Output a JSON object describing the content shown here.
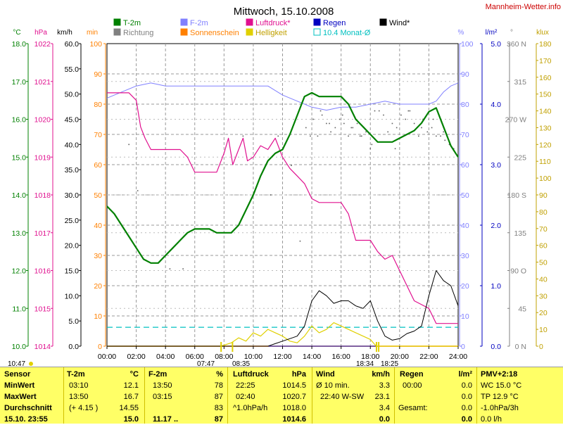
{
  "header": {
    "title": "Mittwoch, 15.10.2008",
    "brand": "Mannheim-Wetter.info"
  },
  "units": {
    "celsius": "°C",
    "hpa": "hPa",
    "kmh": "km/h",
    "min": "min",
    "percent": "%",
    "lm2": "l/m²",
    "deg": "°",
    "klux": "klux"
  },
  "legend": [
    {
      "label": "T-2m",
      "color": "#008000"
    },
    {
      "label": "Richtung",
      "color": "#808080"
    },
    {
      "label": "F-2m",
      "color": "#8080ff"
    },
    {
      "label": "Sonnenschein",
      "color": "#ff8000"
    },
    {
      "label": "Luftdruck*",
      "color": "#e0108f"
    },
    {
      "label": "Helligkeit",
      "color": "#e0d000"
    },
    {
      "label": "Regen",
      "color": "#0000c0"
    },
    {
      "label": "10.4 Monat-Ø",
      "color": "#00c0c0"
    },
    {
      "label": "Wind*",
      "color": "#000000"
    }
  ],
  "axes": {
    "temp": {
      "ticks": [
        "18.0",
        "17.0",
        "16.0",
        "15.0",
        "14.0",
        "13.0",
        "12.0",
        "11.0",
        "10.0"
      ],
      "color": "#008000"
    },
    "press": {
      "ticks": [
        "1022",
        "1021",
        "1020",
        "1019",
        "1018",
        "1017",
        "1016",
        "1015",
        "1014"
      ],
      "color": "#e0108f"
    },
    "wind": {
      "ticks": [
        "60.0",
        "55.0",
        "50.0",
        "45.0",
        "40.0",
        "35.0",
        "30.0",
        "25.0",
        "20.0",
        "15.0",
        "10.0",
        "5.0",
        "0.0"
      ],
      "color": "#000000"
    },
    "minutes": {
      "ticks": [
        "100",
        "90",
        "80",
        "70",
        "60",
        "50",
        "40",
        "30",
        "20",
        "10",
        "0"
      ],
      "color": "#ff8000"
    },
    "humidity": {
      "ticks": [
        "100",
        "90",
        "80",
        "70",
        "60",
        "50",
        "40",
        "30",
        "20",
        "10",
        "0"
      ],
      "color": "#8080ff"
    },
    "rain": {
      "ticks": [
        "5.0",
        "4.0",
        "3.0",
        "2.0",
        "1.0",
        "0.0"
      ],
      "color": "#0000c0"
    },
    "direction": {
      "ticks": [
        "360 N",
        "315",
        "270 W",
        "225",
        "180 S",
        "135",
        "90 O",
        "45",
        "0 N"
      ],
      "color": "#808080"
    },
    "lux": {
      "ticks": [
        "180",
        "170",
        "160",
        "150",
        "140",
        "130",
        "120",
        "110",
        "100",
        "90",
        "80",
        "70",
        "60",
        "50",
        "40",
        "30",
        "20",
        "10",
        "0"
      ],
      "color": "#c0a000"
    }
  },
  "time_labels": [
    "00:00",
    "02:00",
    "04:00",
    "06:00",
    "08:00",
    "10:00",
    "12:00",
    "14:00",
    "16:00",
    "18:00",
    "20:00",
    "22:00",
    "24:00"
  ],
  "sun_marks": {
    "sunrise_left": "10:47",
    "sunrise_1": "07:47",
    "sunrise_2": "08:35",
    "sunset_1": "18:34",
    "sunset_2": "18:25"
  },
  "chart_data": {
    "type": "line",
    "title": "Mittwoch, 15.10.2008",
    "xlabel": "",
    "ylabel": "",
    "xlim": [
      0,
      24
    ],
    "grid": true,
    "legend_position": "top",
    "series": [
      {
        "name": "T-2m",
        "unit": "°C",
        "ylim": [
          10,
          18
        ],
        "x": [
          0,
          0.5,
          1,
          1.5,
          2,
          2.5,
          3,
          3.5,
          4,
          4.5,
          5,
          5.5,
          6,
          6.5,
          7,
          7.5,
          8,
          8.5,
          9,
          9.5,
          10,
          10.5,
          11,
          11.5,
          12,
          12.5,
          13,
          13.5,
          14,
          14.5,
          15,
          15.5,
          16,
          16.5,
          17,
          17.5,
          18,
          18.5,
          19,
          19.5,
          20,
          20.5,
          21,
          21.5,
          22,
          22.5,
          23,
          23.5,
          24
        ],
        "y": [
          13.7,
          13.5,
          13.2,
          12.9,
          12.6,
          12.3,
          12.2,
          12.2,
          12.4,
          12.6,
          12.8,
          13.0,
          13.1,
          13.1,
          13.1,
          13.0,
          13.0,
          13.0,
          13.2,
          13.6,
          14.0,
          14.5,
          14.9,
          15.1,
          15.2,
          15.6,
          16.1,
          16.6,
          16.7,
          16.6,
          16.6,
          16.6,
          16.6,
          16.4,
          16.0,
          15.8,
          15.6,
          15.4,
          15.4,
          15.4,
          15.5,
          15.6,
          15.7,
          15.9,
          16.2,
          16.3,
          15.8,
          15.3,
          15.0
        ]
      },
      {
        "name": "F-2m",
        "unit": "%",
        "ylim": [
          0,
          100
        ],
        "x": [
          0,
          1,
          2,
          3,
          4,
          5,
          6,
          7,
          8,
          9,
          10,
          11,
          12,
          13,
          14,
          15,
          16,
          17,
          18,
          19,
          20,
          21,
          22,
          22.5,
          23,
          23.5,
          24
        ],
        "y": [
          82,
          84,
          86,
          87,
          86,
          86,
          86,
          86,
          86,
          86,
          86,
          86,
          83,
          81,
          79,
          78,
          79,
          79,
          80,
          81,
          80,
          80,
          80,
          81,
          84,
          86,
          87
        ]
      },
      {
        "name": "Luftdruck*",
        "unit": "hPa",
        "ylim": [
          1014,
          1022
        ],
        "x": [
          0,
          1,
          1.5,
          2,
          2.3,
          2.6,
          3,
          3.5,
          4,
          4.5,
          5,
          5.5,
          6,
          6.5,
          7,
          7.5,
          8,
          8.3,
          8.6,
          9,
          9.3,
          9.6,
          10,
          10.5,
          11,
          11.5,
          12,
          12.5,
          13,
          13.5,
          14,
          14.5,
          15,
          15.5,
          16,
          16.5,
          17,
          17.5,
          18,
          18.5,
          19,
          19.5,
          20,
          20.5,
          21,
          21.5,
          22,
          22.5,
          23,
          23.5,
          24
        ],
        "y": [
          1020.7,
          1020.7,
          1020.7,
          1020.5,
          1019.8,
          1019.5,
          1019.2,
          1019.2,
          1019.2,
          1019.2,
          1019.2,
          1019.0,
          1018.6,
          1018.6,
          1018.6,
          1018.6,
          1019.1,
          1019.5,
          1018.8,
          1019.2,
          1019.5,
          1018.9,
          1019.0,
          1019.3,
          1019.2,
          1019.5,
          1019.0,
          1018.7,
          1018.5,
          1018.3,
          1017.9,
          1017.8,
          1017.8,
          1017.8,
          1017.8,
          1017.5,
          1016.8,
          1016.8,
          1016.8,
          1016.5,
          1016.3,
          1016.4,
          1016.0,
          1015.6,
          1015.2,
          1015.1,
          1015.0,
          1014.6,
          1014.6,
          1014.6,
          1014.6
        ]
      },
      {
        "name": "Wind*",
        "unit": "km/h",
        "ylim": [
          0,
          60
        ],
        "x": [
          0,
          11,
          11.5,
          12,
          12.5,
          13,
          13.5,
          14,
          14.5,
          15,
          15.5,
          16,
          16.5,
          17,
          17.5,
          18,
          18.5,
          19,
          19.5,
          20,
          20.5,
          21,
          21.5,
          22,
          22.5,
          23,
          23.5,
          24
        ],
        "y": [
          0,
          0,
          0.5,
          1,
          1.5,
          2,
          4,
          9,
          11,
          10,
          8.5,
          9,
          9,
          8,
          7.5,
          9,
          5,
          2,
          1.2,
          1.5,
          2.5,
          3,
          4,
          10,
          15,
          13,
          12,
          8
        ]
      },
      {
        "name": "Helligkeit",
        "unit": "klux",
        "ylim": [
          0,
          180
        ],
        "x": [
          0,
          7.8,
          8.5,
          9,
          9.5,
          10,
          10.5,
          11,
          11.5,
          12,
          12.5,
          13,
          13.5,
          14,
          14.5,
          15,
          15.5,
          16,
          16.5,
          17,
          17.5,
          18,
          18.4,
          24
        ],
        "y": [
          0,
          0,
          2,
          5,
          3,
          8,
          6,
          10,
          8,
          6,
          3,
          2,
          6,
          12,
          8,
          10,
          14,
          12,
          10,
          8,
          6,
          4,
          0,
          0
        ]
      },
      {
        "name": "Sonnenschein",
        "unit": "min",
        "ylim": [
          0,
          100
        ],
        "x": [
          0,
          24
        ],
        "y": [
          0,
          0
        ]
      },
      {
        "name": "Regen",
        "unit": "l/m²",
        "ylim": [
          0,
          5
        ],
        "x": [
          0,
          24
        ],
        "y": [
          0,
          0
        ]
      },
      {
        "name": "10.4 Monat-Ø",
        "unit": "°C",
        "ylim": [
          10,
          18
        ],
        "x": [
          0,
          24
        ],
        "y": [
          10.5,
          10.5
        ]
      },
      {
        "name": "Richtung",
        "unit": "°",
        "ylim": [
          0,
          360
        ],
        "x": [
          1.5,
          2.1,
          4.3,
          5.2,
          9.3,
          11.2,
          11.7,
          12.6,
          13.2,
          13.6,
          14.1,
          14.4,
          14.7,
          15.0,
          15.3,
          15.6,
          15.9,
          16.2,
          16.5,
          16.8,
          17.1,
          17.4,
          17.7,
          18.0,
          18.3,
          18.6,
          18.9,
          19.2,
          19.5,
          19.8,
          20.1,
          20.4,
          20.7,
          21.0,
          21.3,
          21.6,
          21.9,
          22.2,
          22.5,
          22.8,
          23.1,
          23.4,
          23.7,
          13.9,
          14.6,
          15.2,
          16.1,
          16.7,
          17.3,
          18.1,
          19.7,
          20.6,
          21.5,
          22.3,
          23.0
        ],
        "y": [
          240,
          185,
          92,
          92,
          250,
          180,
          250,
          215,
          125,
          260,
          270,
          250,
          275,
          265,
          255,
          260,
          270,
          265,
          250,
          260,
          265,
          250,
          255,
          235,
          280,
          280,
          275,
          255,
          265,
          260,
          275,
          270,
          280,
          265,
          250,
          270,
          255,
          260,
          250,
          250,
          245,
          240,
          235,
          250,
          280,
          265,
          275,
          260,
          250,
          240,
          235,
          280,
          260,
          270,
          255
        ]
      }
    ]
  },
  "summary": {
    "sensor": {
      "title": "Sensor",
      "rows": [
        "MinWert",
        "MaxWert",
        "Durchschnitt",
        "15.10. 23:55"
      ]
    },
    "temp": {
      "title": "T-2m",
      "unit": "°C",
      "rows": [
        [
          "03:10",
          "12.1"
        ],
        [
          "13:50",
          "16.7"
        ],
        [
          "(+ 4.15 )",
          "14.55"
        ],
        [
          "",
          "15.0"
        ]
      ]
    },
    "hum": {
      "title": "F-2m",
      "unit": "%",
      "rows": [
        [
          "13:50",
          "78"
        ],
        [
          "03:15",
          "87"
        ],
        [
          "",
          "83"
        ],
        [
          "11.17 ..",
          "87"
        ]
      ]
    },
    "press": {
      "title": "Luftdruck",
      "unit": "hPa",
      "rows": [
        [
          "22:25",
          "1014.5"
        ],
        [
          "02:40",
          "1020.7"
        ],
        [
          "^1.0hPa/h",
          "1018.0"
        ],
        [
          "",
          "1014.6"
        ]
      ]
    },
    "wind": {
      "title": "Wind",
      "unit": "km/h",
      "rows": [
        [
          "Ø 10 min.",
          "3.3"
        ],
        [
          "22:40  W-SW",
          "23.1"
        ],
        [
          "",
          "3.4"
        ],
        [
          "",
          "0.0"
        ]
      ]
    },
    "rain": {
      "title": "Regen",
      "unit": "l/m²",
      "rows": [
        [
          "00:00",
          "0.0"
        ],
        [
          "",
          "0.0"
        ],
        [
          "Gesamt:",
          "0.0"
        ],
        [
          "",
          "0.0"
        ]
      ]
    },
    "pmv": {
      "title": "PMV+2:18",
      "rows": [
        "WC 15.0 °C",
        "TP 12.9 °C",
        "-1.0hPa/3h",
        "0.0 l/h"
      ]
    }
  }
}
